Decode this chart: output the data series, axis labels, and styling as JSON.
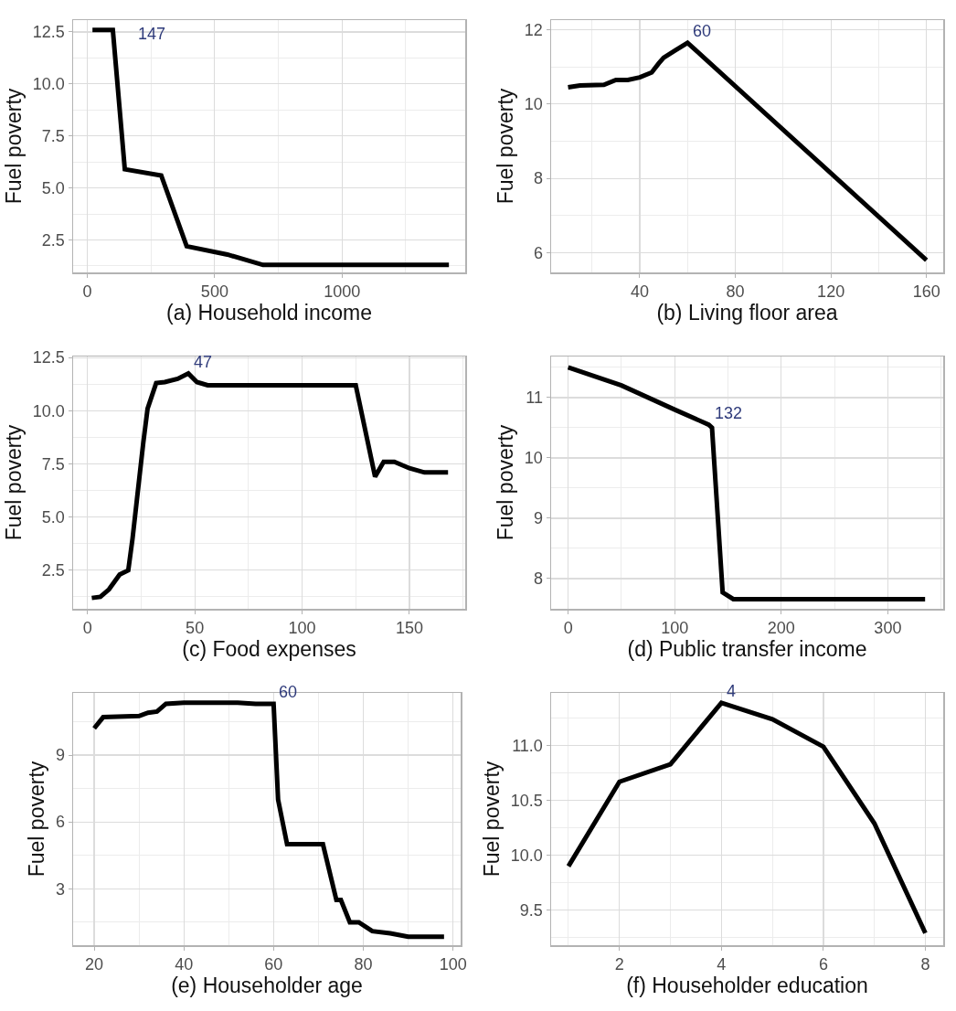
{
  "chart_data": [
    {
      "type": "line",
      "xlabel": "(a) Household income",
      "ylabel": "Fuel poverty",
      "color": "#000000",
      "grid": true,
      "xlim": [
        -56,
        1484
      ],
      "ylim": [
        0.94,
        13.07
      ],
      "xticks": [
        0,
        500,
        1000
      ],
      "yticks": [
        {
          "value": 2.5,
          "label": "2.5"
        },
        {
          "value": 5,
          "label": "5.0"
        },
        {
          "value": 7.5,
          "label": "7.5"
        },
        {
          "value": 10,
          "label": "10.0"
        },
        {
          "value": 12.5,
          "label": "12.5"
        }
      ],
      "x": [
        20,
        100,
        147,
        290,
        390,
        550,
        690,
        1420
      ],
      "values": [
        12.6,
        12.6,
        5.9,
        5.6,
        2.2,
        1.8,
        1.3,
        1.3
      ],
      "annotations": [
        "147"
      ]
    },
    {
      "type": "line",
      "xlabel": "(b) Living floor area",
      "ylabel": "Fuel poverty",
      "color": "#000000",
      "grid": true,
      "xlim": [
        2.9,
        167
      ],
      "ylim": [
        5.47,
        12.26
      ],
      "xticks": [
        40,
        80,
        120,
        160
      ],
      "yticks": [
        6,
        8,
        10,
        12
      ],
      "x": [
        10,
        15,
        25,
        30,
        35,
        40,
        45,
        48,
        50,
        55,
        60,
        160
      ],
      "values": [
        10.45,
        10.5,
        10.52,
        10.65,
        10.65,
        10.72,
        10.85,
        11.1,
        11.25,
        11.45,
        11.65,
        5.8
      ],
      "annotations": [
        {
          "text": "60",
          "x": 60,
          "y": 11.65
        }
      ]
    },
    {
      "type": "line",
      "xlabel": "(c) Food expenses",
      "ylabel": "Fuel poverty",
      "color": "#000000",
      "grid": true,
      "xlim": [
        -6.7,
        176
      ],
      "ylim": [
        0.69,
        12.55
      ],
      "xticks": [
        0,
        50,
        100,
        150
      ],
      "yticks": [
        {
          "value": 2.5,
          "label": "2.5"
        },
        {
          "value": 5,
          "label": "5.0"
        },
        {
          "value": 7.5,
          "label": "7.5"
        },
        {
          "value": 10,
          "label": "10.0"
        },
        {
          "value": 12.5,
          "label": "12.5"
        }
      ],
      "x": [
        2,
        6,
        10,
        15,
        19,
        21,
        23,
        26,
        28,
        32,
        36,
        42,
        47,
        51,
        56,
        70,
        100,
        125,
        134,
        138,
        143,
        150,
        157,
        168
      ],
      "values": [
        1.2,
        1.25,
        1.6,
        2.3,
        2.5,
        4.0,
        5.8,
        8.5,
        10.1,
        11.3,
        11.35,
        11.5,
        11.75,
        11.35,
        11.2,
        11.2,
        11.2,
        11.2,
        6.9,
        7.6,
        7.6,
        7.3,
        7.1,
        7.1
      ],
      "annotations": [
        {
          "text": "47",
          "x": 47,
          "y": 11.75
        }
      ]
    },
    {
      "type": "line",
      "xlabel": "(d) Public transfer income",
      "ylabel": "Fuel poverty",
      "color": "#000000",
      "grid": true,
      "xlim": [
        -16,
        352
      ],
      "ylim": [
        7.5,
        11.68
      ],
      "xticks": [
        0,
        100,
        200,
        300
      ],
      "yticks": [
        8,
        9,
        10,
        11
      ],
      "x": [
        0,
        50,
        100,
        132,
        135,
        145,
        155,
        335
      ],
      "values": [
        11.5,
        11.2,
        10.8,
        10.55,
        10.5,
        7.77,
        7.66,
        7.66
      ],
      "annotations": [
        {
          "text": "132",
          "x": 132,
          "y": 10.55
        }
      ]
    },
    {
      "type": "line",
      "xlabel": "(e) Householder age",
      "ylabel": "Fuel poverty",
      "color": "#000000",
      "grid": true,
      "xlim": [
        15.3,
        101.7
      ],
      "ylim": [
        0.47,
        11.79
      ],
      "xticks": [
        20,
        40,
        60,
        80,
        100
      ],
      "yticks": [
        3,
        6,
        9
      ],
      "x": [
        20,
        22,
        30,
        32,
        34,
        36,
        40,
        52,
        56,
        60,
        61,
        63,
        71,
        74,
        75,
        77,
        79,
        82,
        86,
        90,
        98
      ],
      "values": [
        10.2,
        10.7,
        10.75,
        10.9,
        10.95,
        11.3,
        11.35,
        11.35,
        11.3,
        11.3,
        7.0,
        5.0,
        5.0,
        2.5,
        2.5,
        1.5,
        1.5,
        1.1,
        1.0,
        0.85,
        0.85
      ],
      "annotations": [
        {
          "text": "60",
          "x": 60,
          "y": 11.3
        }
      ]
    },
    {
      "type": "line",
      "xlabel": "(f) Householder education",
      "ylabel": "Fuel poverty",
      "color": "#000000",
      "grid": true,
      "xlim": [
        0.66,
        8.35
      ],
      "ylim": [
        9.18,
        11.48
      ],
      "xticks": [
        2,
        4,
        6,
        8
      ],
      "yticks": [
        {
          "value": 9.5,
          "label": "9.5"
        },
        {
          "value": 10,
          "label": "10.0"
        },
        {
          "value": 10.5,
          "label": "10.5"
        },
        {
          "value": 11,
          "label": "11.0"
        }
      ],
      "x": [
        1,
        2,
        3,
        4,
        5,
        6,
        7,
        8
      ],
      "values": [
        9.9,
        10.67,
        10.83,
        11.39,
        11.24,
        10.99,
        10.29,
        9.29
      ],
      "annotations": [
        {
          "text": "4",
          "x": 4,
          "y": 11.39
        }
      ]
    }
  ]
}
